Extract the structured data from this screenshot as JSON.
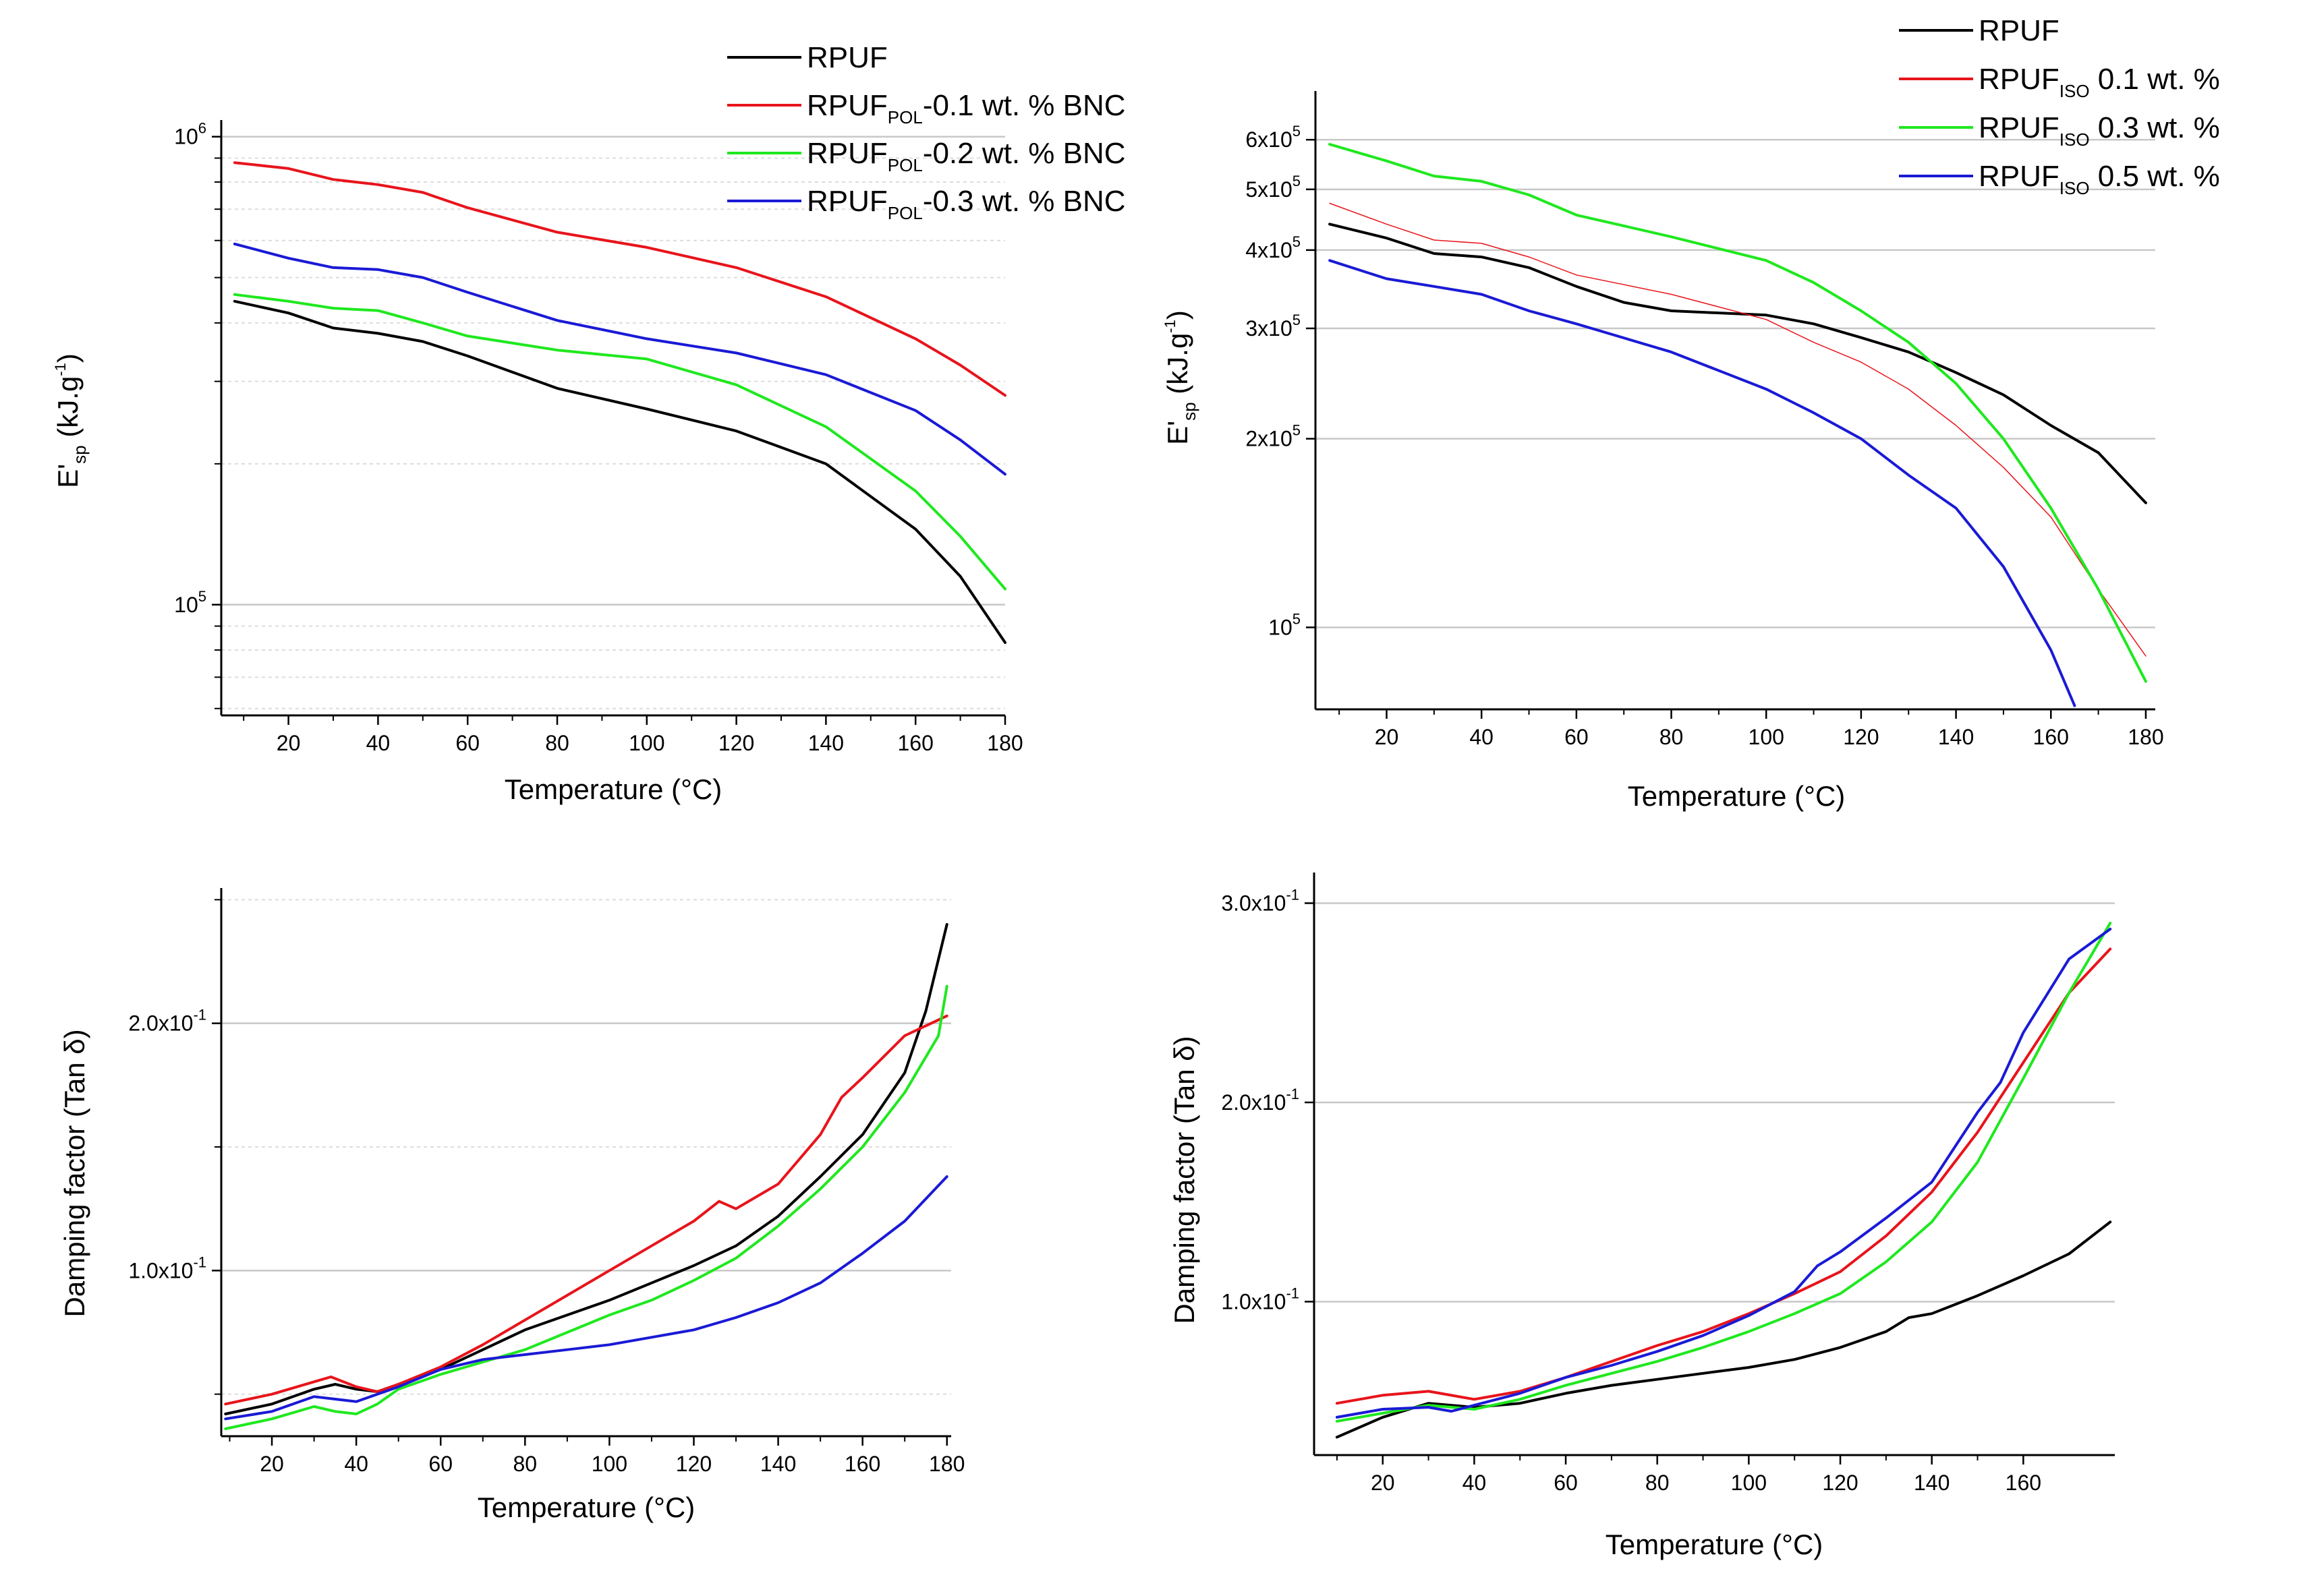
{
  "figure": {
    "background": "#ffffff"
  },
  "chart_data": [
    {
      "id": "tl",
      "type": "line",
      "scale": "log",
      "title": "",
      "xlabel": "Temperature (°C)",
      "ylabel_main": "E'",
      "ylabel_sub": "sp",
      "ylabel_unit": " (kJ.g",
      "ylabel_unit_sup": "-1",
      "ylabel_unit_end": ")",
      "xlim": [
        5,
        180
      ],
      "ylim": [
        58000,
        1050000
      ],
      "xticks": [
        20,
        40,
        60,
        80,
        100,
        120,
        140,
        160,
        180
      ],
      "yticks": [
        {
          "value": 100000,
          "mantissa": "10",
          "exp": "5"
        },
        {
          "value": 1000000,
          "mantissa": "10",
          "exp": "6"
        }
      ],
      "gridlines": [
        100000,
        1000000
      ],
      "minor_grid": true,
      "legend_position": "top-right",
      "legend": [
        {
          "name": "RPUF",
          "sub": "",
          "suffix": ""
        },
        {
          "name": "RPUF",
          "sub": "POL",
          "suffix": "-0.1 wt. % BNC"
        },
        {
          "name": "RPUF",
          "sub": "POL",
          "suffix": "-0.2 wt. % BNC"
        },
        {
          "name": "RPUF",
          "sub": "POL",
          "suffix": "-0.3 wt. % BNC"
        }
      ],
      "series": [
        {
          "name": "RPUF",
          "color": "#000000",
          "x": [
            8,
            20,
            30,
            40,
            50,
            60,
            80,
            100,
            120,
            140,
            160,
            170,
            180
          ],
          "y": [
            445000,
            420000,
            390000,
            380000,
            365000,
            340000,
            290000,
            262000,
            235000,
            200000,
            145000,
            115000,
            83000
          ]
        },
        {
          "name": "RPUF POL-0.1 wt. % BNC",
          "color": "#e8141b",
          "x": [
            8,
            20,
            30,
            40,
            50,
            60,
            80,
            100,
            120,
            140,
            160,
            170,
            180
          ],
          "y": [
            880000,
            855000,
            810000,
            790000,
            760000,
            705000,
            625000,
            580000,
            525000,
            455000,
            370000,
            325000,
            280000
          ]
        },
        {
          "name": "RPUF POL-0.2 wt. % BNC",
          "color": "#1fe81f",
          "x": [
            8,
            20,
            30,
            40,
            50,
            60,
            80,
            100,
            120,
            140,
            160,
            170,
            180
          ],
          "y": [
            460000,
            445000,
            430000,
            425000,
            400000,
            375000,
            350000,
            335000,
            295000,
            240000,
            175000,
            140000,
            108000
          ]
        },
        {
          "name": "RPUF POL-0.3 wt. % BNC",
          "color": "#1a1ad6",
          "x": [
            8,
            20,
            30,
            40,
            50,
            60,
            80,
            100,
            120,
            140,
            160,
            170,
            180
          ],
          "y": [
            590000,
            550000,
            525000,
            520000,
            500000,
            465000,
            405000,
            370000,
            345000,
            310000,
            260000,
            225000,
            190000
          ]
        }
      ]
    },
    {
      "id": "tr",
      "type": "line",
      "scale": "log",
      "title": "",
      "xlabel": "Temperature (°C)",
      "ylabel_main": "E'",
      "ylabel_sub": "sp",
      "ylabel_unit": " (kJ.g",
      "ylabel_unit_sup": "-1",
      "ylabel_unit_end": ")",
      "xlim": [
        5,
        182
      ],
      "ylim": [
        74000,
        700000
      ],
      "xticks": [
        20,
        40,
        60,
        80,
        100,
        120,
        140,
        160,
        180
      ],
      "yticks": [
        {
          "value": 100000,
          "mantissa": "10",
          "exp": "5"
        },
        {
          "value": 200000,
          "mantissa": "2x10",
          "exp": "5"
        },
        {
          "value": 300000,
          "mantissa": "3x10",
          "exp": "5"
        },
        {
          "value": 400000,
          "mantissa": "4x10",
          "exp": "5"
        },
        {
          "value": 500000,
          "mantissa": "5x10",
          "exp": "5"
        },
        {
          "value": 600000,
          "mantissa": "6x10",
          "exp": "5"
        }
      ],
      "gridlines": [
        100000,
        200000,
        300000,
        400000,
        500000,
        600000
      ],
      "minor_grid": false,
      "legend_position": "top-right",
      "legend": [
        {
          "name": "RPUF",
          "sub": "",
          "suffix": ""
        },
        {
          "name": "RPUF",
          "sub": "ISO",
          "suffix": " 0.1 wt. %"
        },
        {
          "name": "RPUF",
          "sub": "ISO",
          "suffix": " 0.3 wt. %"
        },
        {
          "name": "RPUF",
          "sub": "ISO",
          "suffix": " 0.5 wt. %"
        }
      ],
      "series": [
        {
          "name": "RPUF",
          "color": "#000000",
          "x": [
            8,
            20,
            30,
            40,
            50,
            60,
            70,
            80,
            100,
            110,
            120,
            130,
            140,
            150,
            160,
            170,
            180
          ],
          "y": [
            440000,
            418000,
            395000,
            390000,
            375000,
            350000,
            330000,
            320000,
            315000,
            305000,
            290000,
            275000,
            255000,
            235000,
            210000,
            190000,
            158000
          ]
        },
        {
          "name": "RPUF ISO 0.1 wt. %",
          "color": "#e8141b",
          "width": 1.5,
          "x": [
            8,
            20,
            30,
            40,
            50,
            60,
            80,
            100,
            110,
            120,
            130,
            140,
            150,
            160,
            170,
            180
          ],
          "y": [
            475000,
            440000,
            415000,
            410000,
            390000,
            365000,
            340000,
            310000,
            285000,
            265000,
            240000,
            210000,
            180000,
            150000,
            115000,
            90000
          ]
        },
        {
          "name": "RPUF ISO 0.3 wt. %",
          "color": "#1fe81f",
          "x": [
            8,
            20,
            30,
            40,
            50,
            60,
            80,
            100,
            110,
            120,
            130,
            140,
            150,
            160,
            170,
            180
          ],
          "y": [
            590000,
            555000,
            525000,
            515000,
            490000,
            455000,
            420000,
            385000,
            355000,
            320000,
            285000,
            245000,
            200000,
            155000,
            115000,
            82000
          ]
        },
        {
          "name": "RPUF ISO 0.5 wt. %",
          "color": "#1a1ad6",
          "x": [
            8,
            20,
            30,
            40,
            50,
            60,
            80,
            100,
            110,
            120,
            130,
            140,
            150,
            160,
            165
          ],
          "y": [
            385000,
            360000,
            350000,
            340000,
            320000,
            305000,
            275000,
            240000,
            220000,
            200000,
            175000,
            155000,
            125000,
            92000,
            75000
          ]
        }
      ]
    },
    {
      "id": "bl",
      "type": "line",
      "scale": "linear",
      "title": "",
      "xlabel": "Temperature (°C)",
      "ylabel_main": "Damping factor (Tan δ)",
      "xlim": [
        8,
        181
      ],
      "ylim": [
        0.033,
        0.252
      ],
      "xticks": [
        20,
        40,
        60,
        80,
        100,
        120,
        140,
        160,
        180
      ],
      "yticks": [
        {
          "value": 0.1,
          "mantissa": "1.0x10",
          "exp": "-1"
        },
        {
          "value": 0.2,
          "mantissa": "2.0x10",
          "exp": "-1"
        }
      ],
      "gridlines": [
        0.1,
        0.2
      ],
      "minor_grid": true,
      "series": [
        {
          "name": "RPUF",
          "color": "#000000",
          "x": [
            9,
            20,
            30,
            35,
            40,
            45,
            50,
            60,
            70,
            80,
            90,
            100,
            110,
            120,
            130,
            140,
            150,
            160,
            170,
            175,
            180
          ],
          "y": [
            0.042,
            0.046,
            0.052,
            0.054,
            0.052,
            0.051,
            0.054,
            0.06,
            0.068,
            0.076,
            0.082,
            0.088,
            0.095,
            0.102,
            0.11,
            0.122,
            0.138,
            0.155,
            0.18,
            0.205,
            0.24
          ]
        },
        {
          "name": "RPUF POL-0.1 wt. % BNC",
          "color": "#e8141b",
          "x": [
            9,
            20,
            30,
            34,
            40,
            45,
            50,
            60,
            70,
            80,
            90,
            100,
            110,
            120,
            126,
            130,
            140,
            150,
            155,
            160,
            170,
            180
          ],
          "y": [
            0.046,
            0.05,
            0.055,
            0.057,
            0.053,
            0.051,
            0.054,
            0.061,
            0.07,
            0.08,
            0.09,
            0.1,
            0.11,
            0.12,
            0.128,
            0.125,
            0.135,
            0.155,
            0.17,
            0.178,
            0.195,
            0.203
          ]
        },
        {
          "name": "RPUF POL-0.2 wt. % BNC",
          "color": "#1fe81f",
          "x": [
            9,
            20,
            30,
            35,
            40,
            45,
            50,
            60,
            70,
            80,
            90,
            100,
            110,
            120,
            130,
            140,
            150,
            160,
            170,
            178,
            180
          ],
          "y": [
            0.036,
            0.04,
            0.045,
            0.043,
            0.042,
            0.046,
            0.052,
            0.058,
            0.063,
            0.068,
            0.075,
            0.082,
            0.088,
            0.096,
            0.105,
            0.118,
            0.133,
            0.15,
            0.172,
            0.195,
            0.215
          ]
        },
        {
          "name": "RPUF POL-0.3 wt. % BNC",
          "color": "#1a1ad6",
          "x": [
            9,
            20,
            30,
            40,
            50,
            60,
            70,
            80,
            90,
            100,
            110,
            120,
            130,
            140,
            150,
            160,
            170,
            180
          ],
          "y": [
            0.04,
            0.043,
            0.049,
            0.047,
            0.053,
            0.06,
            0.064,
            0.066,
            0.068,
            0.07,
            0.073,
            0.076,
            0.081,
            0.087,
            0.095,
            0.107,
            0.12,
            0.138
          ]
        }
      ]
    },
    {
      "id": "br",
      "type": "line",
      "scale": "linear",
      "title": "",
      "xlabel": "Temperature (°C)",
      "ylabel_main": "Damping factor (Tan δ)",
      "xlim": [
        5,
        180
      ],
      "ylim": [
        0.023,
        0.312
      ],
      "xticks": [
        20,
        40,
        60,
        80,
        100,
        120,
        140,
        160
      ],
      "yticks": [
        {
          "value": 0.1,
          "mantissa": "1.0x10",
          "exp": "-1"
        },
        {
          "value": 0.2,
          "mantissa": "2.0x10",
          "exp": "-1"
        },
        {
          "value": 0.3,
          "mantissa": "3.0x10",
          "exp": "-1"
        }
      ],
      "gridlines": [
        0.1,
        0.2,
        0.3
      ],
      "minor_grid": false,
      "series": [
        {
          "name": "RPUF",
          "color": "#000000",
          "x": [
            10,
            20,
            30,
            40,
            50,
            60,
            70,
            80,
            90,
            100,
            110,
            120,
            130,
            135,
            140,
            150,
            160,
            170,
            179
          ],
          "y": [
            0.032,
            0.042,
            0.049,
            0.047,
            0.049,
            0.054,
            0.058,
            0.061,
            0.064,
            0.067,
            0.071,
            0.077,
            0.085,
            0.092,
            0.094,
            0.103,
            0.113,
            0.124,
            0.14
          ]
        },
        {
          "name": "RPUF ISO 0.1 wt. %",
          "color": "#e8141b",
          "x": [
            10,
            20,
            30,
            40,
            50,
            60,
            70,
            80,
            90,
            100,
            110,
            120,
            130,
            140,
            150,
            160,
            170,
            179
          ],
          "y": [
            0.049,
            0.053,
            0.055,
            0.051,
            0.055,
            0.062,
            0.07,
            0.078,
            0.085,
            0.094,
            0.104,
            0.115,
            0.133,
            0.155,
            0.185,
            0.22,
            0.255,
            0.277
          ]
        },
        {
          "name": "RPUF ISO 0.3 wt. %",
          "color": "#1fe81f",
          "x": [
            10,
            20,
            30,
            40,
            50,
            60,
            70,
            80,
            90,
            100,
            110,
            120,
            130,
            140,
            150,
            160,
            170,
            179
          ],
          "y": [
            0.04,
            0.044,
            0.048,
            0.046,
            0.051,
            0.058,
            0.064,
            0.07,
            0.077,
            0.085,
            0.094,
            0.104,
            0.12,
            0.14,
            0.17,
            0.212,
            0.255,
            0.29
          ]
        },
        {
          "name": "RPUF ISO 0.5 wt. %",
          "color": "#1a1ad6",
          "x": [
            10,
            20,
            30,
            35,
            40,
            50,
            60,
            70,
            80,
            90,
            100,
            110,
            115,
            120,
            130,
            140,
            150,
            155,
            160,
            170,
            179
          ],
          "y": [
            0.042,
            0.046,
            0.047,
            0.045,
            0.048,
            0.054,
            0.062,
            0.068,
            0.075,
            0.083,
            0.093,
            0.105,
            0.118,
            0.125,
            0.142,
            0.16,
            0.195,
            0.21,
            0.235,
            0.272,
            0.287
          ]
        }
      ]
    }
  ]
}
